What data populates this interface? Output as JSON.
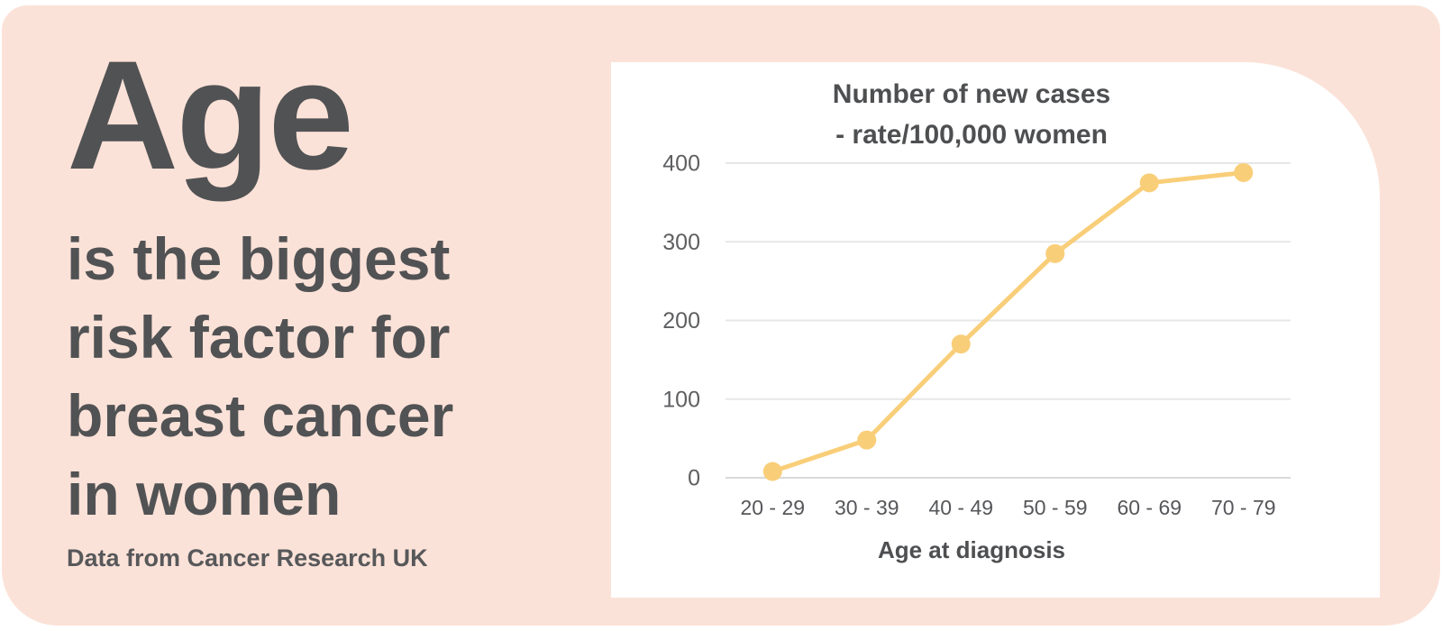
{
  "page": {
    "background_color": "#ffffff",
    "poster_background_color": "#FBE2D8",
    "card_background_color": "#ffffff",
    "text_color": "#515254"
  },
  "left_panel": {
    "heading": "Age",
    "subtitle_lines": [
      "is the biggest",
      "risk factor for",
      "breast cancer",
      "in women"
    ],
    "source": "Data from Cancer Research UK"
  },
  "chart_data": {
    "type": "line",
    "title": "Number of new cases - rate/100,000 women",
    "title_lines": [
      "Number of new cases",
      "- rate/100,000 women"
    ],
    "categories": [
      "20 - 29",
      "30 - 39",
      "40 - 49",
      "50 - 59",
      "60 - 69",
      "70 - 79"
    ],
    "values": [
      8,
      48,
      170,
      285,
      375,
      388
    ],
    "xlabel": "Age at diagnosis",
    "ylabel": "",
    "ylim": [
      0,
      400
    ],
    "yticks": [
      0,
      100,
      200,
      300,
      400
    ],
    "grid": true,
    "legend": "none",
    "line_color": "#F9CE79",
    "marker_color": "#F9CE79",
    "gridline_color": "#E7E7E7",
    "axis_line_color": "#D9D9D9",
    "tick_color": "#5E5F61",
    "category_label_color": "#56575A",
    "xlabel_color": "#4E4F51"
  }
}
